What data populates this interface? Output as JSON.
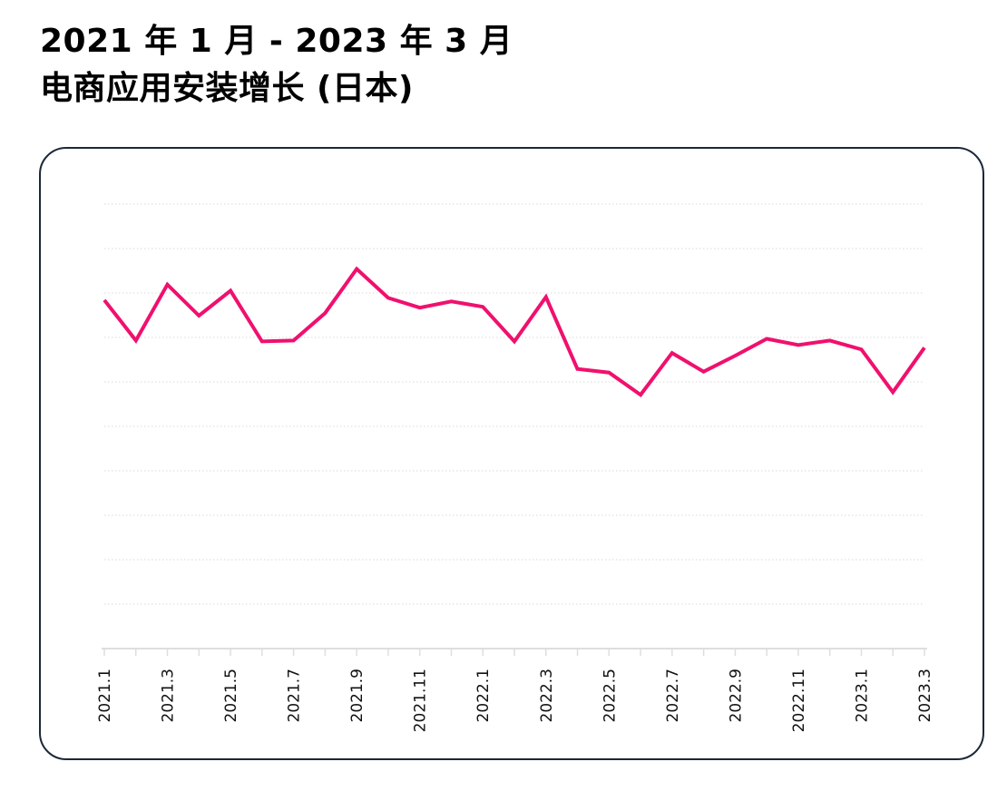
{
  "title": {
    "line1": "2021 年 1 月 - 2023 年 3 月",
    "line2": "电商应用安装增长 (日本)"
  },
  "colors": {
    "line": "#f0106e",
    "grid": "#d9d9d9",
    "axis": "#dedede",
    "card_border": "#1b2838"
  },
  "chart_data": {
    "type": "line",
    "title": "2021 年 1 月 - 2023 年 3 月 电商应用安装增长 (日本)",
    "xlabel": "",
    "ylabel": "",
    "categories": [
      "2021.1",
      "2021.2",
      "2021.3",
      "2021.4",
      "2021.5",
      "2021.6",
      "2021.7",
      "2021.8",
      "2021.9",
      "2021.10",
      "2021.11",
      "2021.12",
      "2022.1",
      "2022.2",
      "2022.3",
      "2022.4",
      "2022.5",
      "2022.6",
      "2022.7",
      "2022.8",
      "2022.9",
      "2022.10",
      "2022.11",
      "2022.12",
      "2023.1",
      "2023.2",
      "2023.3"
    ],
    "tick_labels": [
      "2021.1",
      "2021.3",
      "2021.5",
      "2021.7",
      "2021.9",
      "2021.11",
      "2022.1",
      "2022.3",
      "2022.5",
      "2022.7",
      "2022.9",
      "2022.11",
      "2023.1",
      "2023.3"
    ],
    "series": [
      {
        "values": [
          78.4,
          69.3,
          81.9,
          74.9,
          80.5,
          69.1,
          69.3,
          75.5,
          85.4,
          78.9,
          76.7,
          78.1,
          76.9,
          69.1,
          79.1,
          62.9,
          62.1,
          57.1,
          66.5,
          62.3,
          65.9,
          69.7,
          68.3,
          69.3,
          67.3,
          57.7,
          67.7
        ]
      }
    ],
    "ylim": [
      0,
      100
    ],
    "grid": true,
    "legend": "none"
  }
}
